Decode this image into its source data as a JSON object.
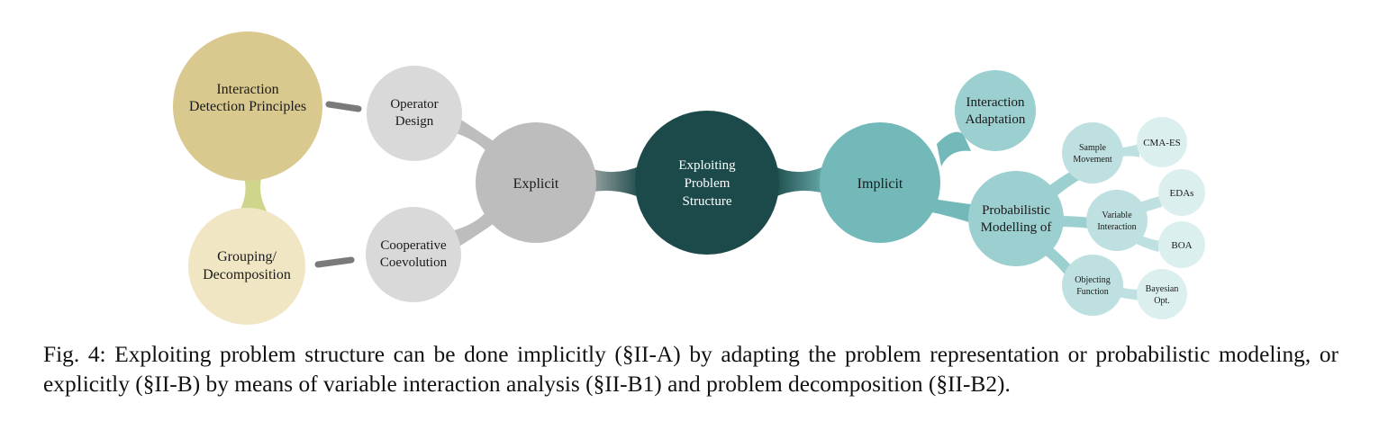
{
  "diagram": {
    "center": [
      "Exploiting",
      "Problem",
      "Structure"
    ],
    "explicit": {
      "label": [
        "Explicit"
      ],
      "operator_design": [
        "Operator",
        "Design"
      ],
      "cooperative_coevolution": [
        "Cooperative",
        "Coevolution"
      ],
      "interaction_detection": [
        "Interaction",
        "Detection Principles"
      ],
      "grouping_decomposition": [
        "Grouping/",
        "Decomposition"
      ]
    },
    "implicit": {
      "label": [
        "Implicit"
      ],
      "interaction_adaptation": [
        "Interaction",
        "Adaptation"
      ],
      "probabilistic_modelling": [
        "Probabilistic",
        "Modelling of"
      ],
      "sample_movement": [
        "Sample",
        "Movement"
      ],
      "variable_interaction": [
        "Variable",
        "Interaction"
      ],
      "objecting_function": [
        "Objecting",
        "Function"
      ],
      "cma_es": [
        "CMA-ES"
      ],
      "edas": [
        "EDAs"
      ],
      "boa": [
        "BOA"
      ],
      "bayesian_opt": [
        "Bayesian",
        "Opt."
      ]
    },
    "colors": {
      "center": "#1c4a4a",
      "explicit": "#bdbdbd",
      "explicit_leaf": "#d9d9d9",
      "interaction_detection": "#d9c98e",
      "grouping": "#f0e6c4",
      "connector_yellow": "#cfd58a",
      "implicit": "#74b9b9",
      "implicit_mid": "#9ccfcf",
      "implicit_small": "#bfe0e0",
      "implicit_leaf": "#dcefef",
      "dash": "#7a7a7a"
    }
  },
  "caption": "Fig. 4: Exploiting problem structure can be done implicitly (§II-A) by adapting the problem representation or probabilistic modeling, or explicitly (§II-B) by means of variable interaction analysis (§II-B1) and problem decomposition (§II-B2)."
}
